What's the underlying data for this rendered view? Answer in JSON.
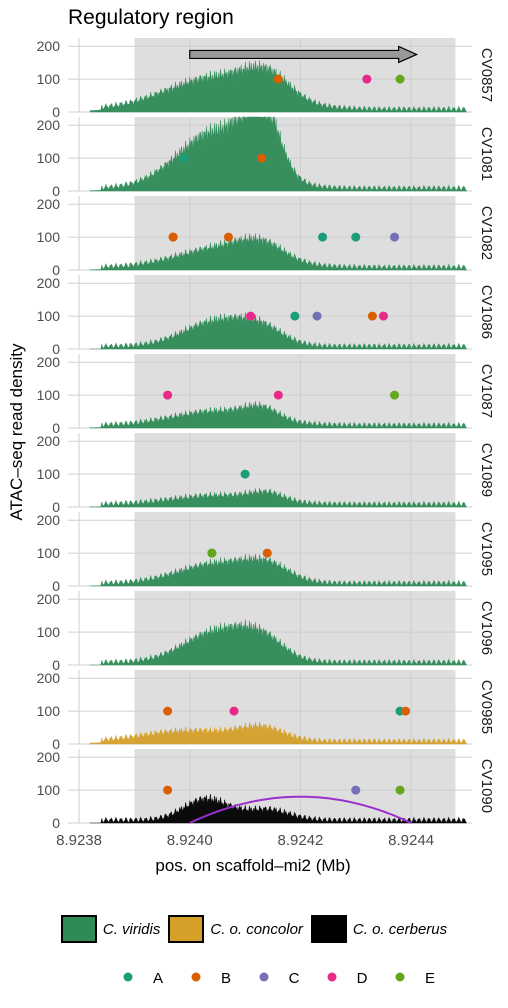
{
  "chart_data": {
    "type": "area",
    "title": "Regulatory region",
    "xlabel": "pos. on scaffold–mi2 (Mb)",
    "ylabel": "ATAC–seq read density",
    "xlim": [
      8.92378,
      8.92451
    ],
    "ylim": [
      0,
      225
    ],
    "x_ticks": [
      "8.9238",
      "8.9240",
      "8.9242",
      "8.9244"
    ],
    "x_tick_values": [
      8.9238,
      8.924,
      8.9242,
      8.9244
    ],
    "y_ticks": [
      "0",
      "100",
      "200"
    ],
    "y_tick_values": [
      0,
      100,
      200
    ],
    "grid": true,
    "highlight_region": [
      8.9239,
      8.92448
    ],
    "arrow": {
      "from": 8.924,
      "to": 8.92441,
      "y": 175
    },
    "species_colors": {
      "C. viridis": "#2e8b57",
      "C. o. concolor": "#d4a02a",
      "C. o. cerberus": "#000000"
    },
    "panels": [
      {
        "label": "CV0857",
        "species": "C. viridis",
        "peaks": [
          [
            8.92405,
            90,
            9e-05
          ],
          [
            8.92414,
            60,
            4e-05
          ]
        ],
        "points": [
          {
            "x": 8.92416,
            "y": 100,
            "g": "B"
          },
          {
            "x": 8.92432,
            "y": 100,
            "g": "D"
          },
          {
            "x": 8.92438,
            "y": 100,
            "g": "E"
          }
        ]
      },
      {
        "label": "CV1081",
        "species": "C. viridis",
        "peaks": [
          [
            8.92405,
            160,
            7e-05
          ],
          [
            8.92413,
            180,
            3e-05
          ]
        ],
        "points": [
          {
            "x": 8.92399,
            "y": 100,
            "g": "A"
          },
          {
            "x": 8.92413,
            "y": 100,
            "g": "B"
          }
        ]
      },
      {
        "label": "CV1082",
        "species": "C. viridis",
        "peaks": [
          [
            8.92406,
            55,
            8e-05
          ],
          [
            8.92413,
            40,
            4e-05
          ]
        ],
        "points": [
          {
            "x": 8.92397,
            "y": 100,
            "g": "D"
          },
          {
            "x": 8.92397,
            "y": 100,
            "g": "B"
          },
          {
            "x": 8.92407,
            "y": 100,
            "g": "B"
          },
          {
            "x": 8.92424,
            "y": 100,
            "g": "A"
          },
          {
            "x": 8.9243,
            "y": 100,
            "g": "A"
          },
          {
            "x": 8.92437,
            "y": 100,
            "g": "C"
          }
        ]
      },
      {
        "label": "CV1086",
        "species": "C. viridis",
        "peaks": [
          [
            8.92405,
            70,
            6e-05
          ],
          [
            8.92413,
            40,
            4e-05
          ]
        ],
        "points": [
          {
            "x": 8.92411,
            "y": 100,
            "g": "D"
          },
          {
            "x": 8.92419,
            "y": 100,
            "g": "A"
          },
          {
            "x": 8.92423,
            "y": 100,
            "g": "C"
          },
          {
            "x": 8.92433,
            "y": 100,
            "g": "B"
          },
          {
            "x": 8.92435,
            "y": 100,
            "g": "D"
          }
        ]
      },
      {
        "label": "CV1087",
        "species": "C. viridis",
        "peaks": [
          [
            8.92405,
            40,
            8e-05
          ],
          [
            8.92413,
            30,
            3e-05
          ]
        ],
        "points": [
          {
            "x": 8.92396,
            "y": 100,
            "g": "D"
          },
          {
            "x": 8.92416,
            "y": 100,
            "g": "D"
          },
          {
            "x": 8.92437,
            "y": 100,
            "g": "E"
          }
        ]
      },
      {
        "label": "CV1089",
        "species": "C. viridis",
        "peaks": [
          [
            8.92405,
            25,
            8e-05
          ],
          [
            8.92414,
            22,
            3e-05
          ]
        ],
        "points": [
          {
            "x": 8.9241,
            "y": 100,
            "g": "A"
          }
        ]
      },
      {
        "label": "CV1095",
        "species": "C. viridis",
        "peaks": [
          [
            8.92405,
            55,
            7e-05
          ],
          [
            8.92414,
            40,
            4e-05
          ]
        ],
        "points": [
          {
            "x": 8.92404,
            "y": 100,
            "g": "A"
          },
          {
            "x": 8.92404,
            "y": 100,
            "g": "E"
          },
          {
            "x": 8.92414,
            "y": 100,
            "g": "B"
          }
        ]
      },
      {
        "label": "CV1096",
        "species": "C. viridis",
        "peaks": [
          [
            8.92405,
            85,
            6e-05
          ],
          [
            8.92413,
            55,
            4e-05
          ]
        ],
        "points": []
      },
      {
        "label": "CV0985",
        "species": "C. o. concolor",
        "peaks": [
          [
            8.924,
            30,
            8e-05
          ],
          [
            8.92413,
            35,
            4e-05
          ]
        ],
        "points": [
          {
            "x": 8.92396,
            "y": 100,
            "g": "B"
          },
          {
            "x": 8.92408,
            "y": 100,
            "g": "D"
          },
          {
            "x": 8.92438,
            "y": 100,
            "g": "A"
          },
          {
            "x": 8.92439,
            "y": 100,
            "g": "B"
          }
        ]
      },
      {
        "label": "CV1090",
        "species": "C. o. cerberus",
        "peaks": [
          [
            8.92403,
            60,
            4e-05
          ],
          [
            8.92414,
            30,
            4e-05
          ]
        ],
        "points": [
          {
            "x": 8.92396,
            "y": 100,
            "g": "B"
          },
          {
            "x": 8.9243,
            "y": 100,
            "g": "C"
          },
          {
            "x": 8.92438,
            "y": 100,
            "g": "E"
          }
        ],
        "curve": {
          "x0": 8.924,
          "x1": 8.9244,
          "peak": 80,
          "color": "#9932cc"
        }
      }
    ],
    "point_groups": [
      {
        "name": "A",
        "color": "#1b9e77"
      },
      {
        "name": "B",
        "color": "#d95f02"
      },
      {
        "name": "C",
        "color": "#7570b3"
      },
      {
        "name": "D",
        "color": "#e7298a"
      },
      {
        "name": "E",
        "color": "#66a61e"
      }
    ],
    "legend": {
      "species": [
        "C. viridis",
        "C. o. concolor",
        "C. o. cerberus"
      ],
      "placement": "bottom"
    }
  }
}
